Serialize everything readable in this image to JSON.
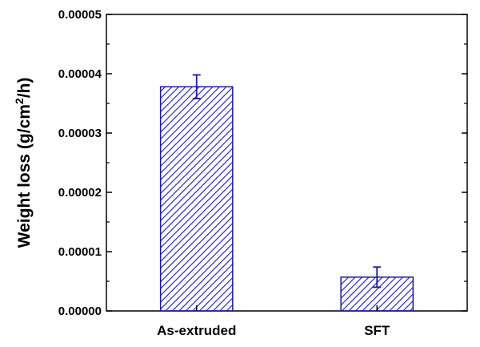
{
  "chart_data": {
    "type": "bar",
    "categories": [
      "As-extruded",
      "SFT"
    ],
    "values": [
      3.78e-05,
      5.7e-06
    ],
    "errors": [
      2e-06,
      1.7e-06
    ],
    "ylim": [
      0,
      5e-05
    ],
    "yticks": [
      "0.00000",
      "0.00001",
      "0.00002",
      "0.00003",
      "0.00004",
      "0.00005"
    ],
    "ylabel_main": "Weight loss (g/cm",
    "ylabel_sup": "2",
    "ylabel_tail": "/h)",
    "xlabel": "",
    "title": "",
    "colors": {
      "bar_fill": "#2a2ab4",
      "bar_edge": "#1b1b9e",
      "error_bar": "#1b1b9e",
      "axis": "#000000"
    }
  }
}
